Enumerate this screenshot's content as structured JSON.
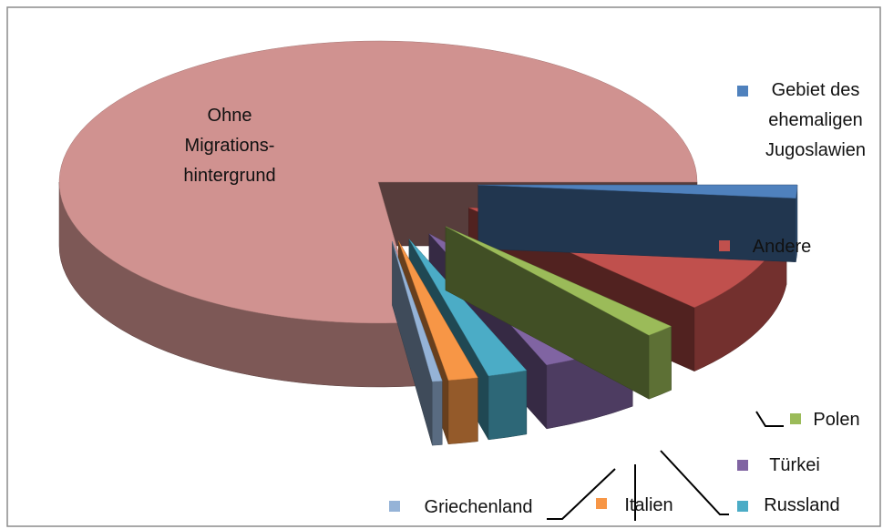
{
  "chart_data": {
    "type": "pie3d",
    "categories": [
      "Gebiet des\nehemaligen\nJugoslawien",
      "Andere",
      "Polen",
      "Türkei",
      "Russland",
      "Italien",
      "Griechenland",
      "Ohne\nMigrations-\nhintergrund"
    ],
    "values": [
      1.5,
      11,
      1.5,
      5,
      2,
      1.5,
      0.5,
      77
    ],
    "colors": [
      "#4f81bd",
      "#c0504d",
      "#9bbb59",
      "#8064a2",
      "#4bacc6",
      "#f79646",
      "#95b3d7",
      "#d09290"
    ]
  }
}
